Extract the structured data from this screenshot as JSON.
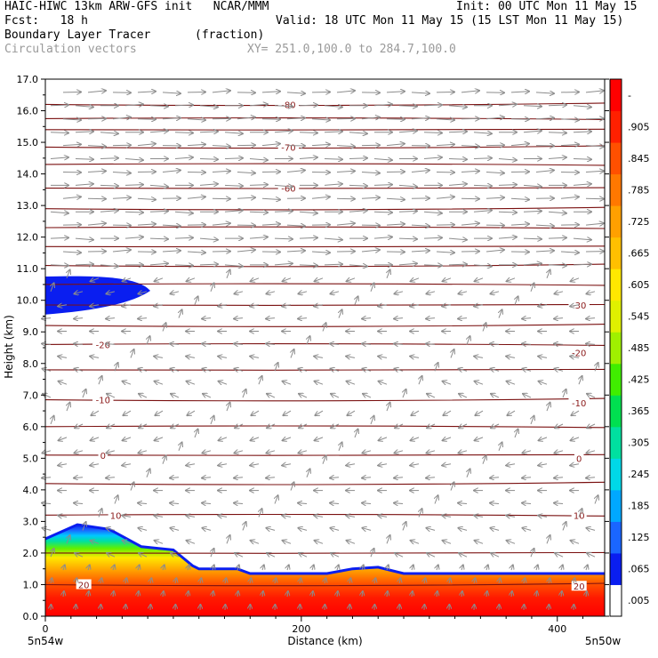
{
  "header": {
    "line1_left": "HAIC-HIWC 13km ARW-GFS init   NCAR/MMM",
    "line1_right": "Init: 00 UTC Mon 11 May 15",
    "line2_left": "Fcst:   18 h",
    "line2_right": "Valid: 18 UTC Mon 11 May 15 (15 LST Mon 11 May 15)",
    "field_name": "Boundary Layer Tracer",
    "field_units": "(fraction)",
    "vectors_name": "Circulation vectors",
    "xsec_coords": "XY= 251.0,100.0 to 284.7,100.0"
  },
  "chart_data": {
    "type": "heatmap",
    "title": "Boundary Layer Tracer",
    "ylabel": "Height (km)",
    "xlabel": "Distance (km)",
    "xlim": [
      0,
      437
    ],
    "ylim": [
      0,
      17
    ],
    "y_ticks": [
      "0.0",
      "1.0",
      "2.0",
      "3.0",
      "4.0",
      "5.0",
      "6.0",
      "7.0",
      "8.0",
      "9.0",
      "10.0",
      "11.0",
      "12.0",
      "13.0",
      "14.0",
      "15.0",
      "16.0",
      "17.0"
    ],
    "x_ticks": [
      "0",
      "200",
      "400"
    ],
    "x_endpoints": {
      "left": "5n54w",
      "right": "5n50w"
    },
    "colorbar": {
      "labels": [
        ".005",
        ".065",
        ".125",
        ".185",
        ".245",
        ".305",
        ".365",
        ".425",
        ".485",
        ".545",
        ".605",
        ".665",
        ".725",
        ".785",
        ".845",
        ".905",
        "-"
      ],
      "colors": [
        "#ffffff",
        "#0a1ef0",
        "#1a66ff",
        "#00a8ff",
        "#00d8e8",
        "#00e0a0",
        "#00e050",
        "#40ee00",
        "#a0f000",
        "#e0f000",
        "#ffe800",
        "#ffc000",
        "#ffa000",
        "#ff7800",
        "#ff5000",
        "#ff2000",
        "#ff0000"
      ]
    },
    "tracer_top_km": [
      {
        "x": 0,
        "top": 2.45
      },
      {
        "x": 25,
        "top": 2.9
      },
      {
        "x": 50,
        "top": 2.75
      },
      {
        "x": 75,
        "top": 2.2
      },
      {
        "x": 100,
        "top": 2.1
      },
      {
        "x": 115,
        "top": 1.6
      },
      {
        "x": 120,
        "top": 1.5
      },
      {
        "x": 150,
        "top": 1.5
      },
      {
        "x": 160,
        "top": 1.35
      },
      {
        "x": 220,
        "top": 1.35
      },
      {
        "x": 240,
        "top": 1.5
      },
      {
        "x": 260,
        "top": 1.55
      },
      {
        "x": 280,
        "top": 1.35
      },
      {
        "x": 437,
        "top": 1.35
      }
    ],
    "upper_patch": {
      "x_end": 82,
      "bottom_km": 9.55,
      "top_km": 10.75,
      "value": ".065"
    },
    "temperature_contours": [
      {
        "label": "-80",
        "height_km": 16.2,
        "label_x": 190
      },
      {
        "label": "-70",
        "height_km": 14.85,
        "label_x": 190
      },
      {
        "label": "-60",
        "height_km": 13.55,
        "label_x": 190
      },
      {
        "label": "-30",
        "height_km": 9.85,
        "label_x": 417
      },
      {
        "label": "-20",
        "height_km": 8.6,
        "label_x": 45
      },
      {
        "label": "-20",
        "height_km": 8.35,
        "label_x": 417
      },
      {
        "label": "-10",
        "height_km": 6.85,
        "label_x": 45
      },
      {
        "label": "-10",
        "height_km": 6.75,
        "label_x": 417
      },
      {
        "label": "0",
        "height_km": 5.1,
        "label_x": 45
      },
      {
        "label": "0",
        "height_km": 5.0,
        "label_x": 417
      },
      {
        "label": "10",
        "height_km": 3.2,
        "label_x": 55
      },
      {
        "label": "10",
        "height_km": 3.2,
        "label_x": 417
      },
      {
        "label": "20",
        "height_km": 1.0,
        "label_x": 30
      },
      {
        "label": "20",
        "height_km": 0.95,
        "label_x": 417
      }
    ],
    "contour_levels_km": [
      16.2,
      15.75,
      15.4,
      14.85,
      14.3,
      13.55,
      12.9,
      12.3,
      11.7,
      11.1,
      10.5,
      9.85,
      9.2,
      8.6,
      7.8,
      6.85,
      6.0,
      5.1,
      4.2,
      3.2,
      2.0,
      1.0
    ]
  }
}
